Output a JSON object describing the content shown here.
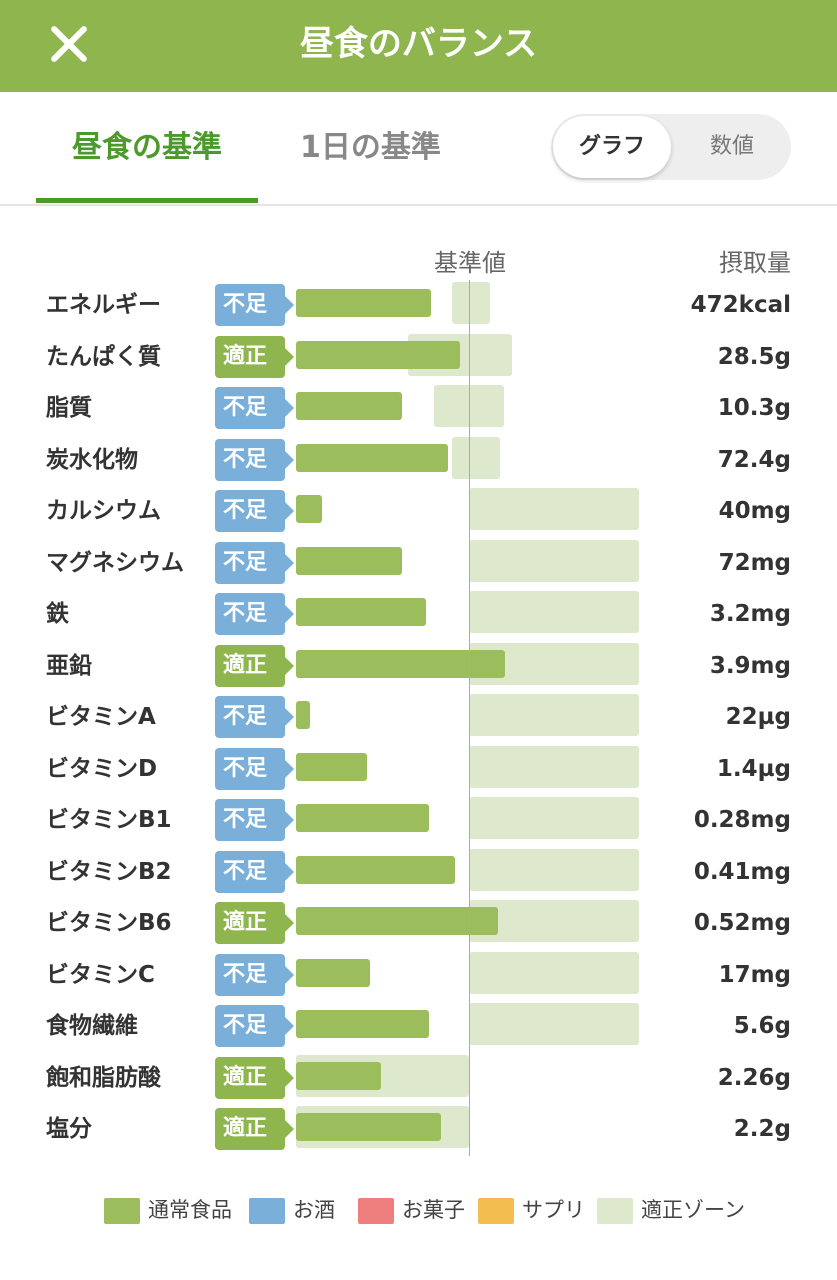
{
  "header": {
    "title": "昼食のバランス",
    "close_icon": "close-icon"
  },
  "tabs": [
    {
      "label": "昼食の基準",
      "active": true
    },
    {
      "label": "1日の基準",
      "active": false
    }
  ],
  "view_toggle": {
    "options": [
      "グラフ",
      "数値"
    ],
    "selected": "グラフ"
  },
  "columns": {
    "reference": "基準値",
    "intake": "摂取量"
  },
  "colors": {
    "header_bg": "#8fb54e",
    "low_badge": "#7aafd9",
    "ok_badge": "#8fb54e",
    "bar_food": "#9bbd5c",
    "zone": "#dde8cd",
    "alcohol": "#7aafd9",
    "sweets": "#ef7f7f",
    "supplement": "#f3bd4f"
  },
  "nutrients": [
    {
      "name": "エネルギー",
      "status": "不足",
      "status_type": "low",
      "intake": "472kcal",
      "ratio": 0.78,
      "zone": [
        0.9,
        1.12
      ]
    },
    {
      "name": "たんぱく質",
      "status": "適正",
      "status_type": "ok",
      "intake": "28.5g",
      "ratio": 0.95,
      "zone": [
        0.65,
        1.25
      ]
    },
    {
      "name": "脂質",
      "status": "不足",
      "status_type": "low",
      "intake": "10.3g",
      "ratio": 0.61,
      "zone": [
        0.8,
        1.2
      ]
    },
    {
      "name": "炭水化物",
      "status": "不足",
      "status_type": "low",
      "intake": "72.4g",
      "ratio": 0.88,
      "zone": [
        0.9,
        1.18
      ]
    },
    {
      "name": "カルシウム",
      "status": "不足",
      "status_type": "low",
      "intake": "40mg",
      "ratio": 0.15,
      "zone": [
        1.0,
        1.98
      ]
    },
    {
      "name": "マグネシウム",
      "status": "不足",
      "status_type": "low",
      "intake": "72mg",
      "ratio": 0.61,
      "zone": [
        1.0,
        1.98
      ]
    },
    {
      "name": "鉄",
      "status": "不足",
      "status_type": "low",
      "intake": "3.2mg",
      "ratio": 0.75,
      "zone": [
        1.0,
        1.98
      ]
    },
    {
      "name": "亜鉛",
      "status": "適正",
      "status_type": "ok",
      "intake": "3.9mg",
      "ratio": 1.21,
      "zone": [
        1.0,
        1.98
      ]
    },
    {
      "name": "ビタミンA",
      "status": "不足",
      "status_type": "low",
      "intake": "22µg",
      "ratio": 0.08,
      "zone": [
        1.0,
        1.98
      ]
    },
    {
      "name": "ビタミンD",
      "status": "不足",
      "status_type": "low",
      "intake": "1.4µg",
      "ratio": 0.41,
      "zone": [
        1.0,
        1.98
      ]
    },
    {
      "name": "ビタミンB1",
      "status": "不足",
      "status_type": "low",
      "intake": "0.28mg",
      "ratio": 0.77,
      "zone": [
        1.0,
        1.98
      ]
    },
    {
      "name": "ビタミンB2",
      "status": "不足",
      "status_type": "low",
      "intake": "0.41mg",
      "ratio": 0.92,
      "zone": [
        1.0,
        1.98
      ]
    },
    {
      "name": "ビタミンB6",
      "status": "適正",
      "status_type": "ok",
      "intake": "0.52mg",
      "ratio": 1.17,
      "zone": [
        1.0,
        1.98
      ]
    },
    {
      "name": "ビタミンC",
      "status": "不足",
      "status_type": "low",
      "intake": "17mg",
      "ratio": 0.43,
      "zone": [
        1.0,
        1.98
      ]
    },
    {
      "name": "食物繊維",
      "status": "不足",
      "status_type": "low",
      "intake": "5.6g",
      "ratio": 0.77,
      "zone": [
        1.0,
        1.98
      ]
    },
    {
      "name": "飽和脂肪酸",
      "status": "適正",
      "status_type": "ok",
      "intake": "2.26g",
      "ratio": 0.49,
      "zone": [
        0.0,
        1.0
      ]
    },
    {
      "name": "塩分",
      "status": "適正",
      "status_type": "ok",
      "intake": "2.2g",
      "ratio": 0.84,
      "zone": [
        0.0,
        1.0
      ]
    }
  ],
  "legend": [
    {
      "label": "通常食品",
      "color": "#9bbd5c"
    },
    {
      "label": "お酒",
      "color": "#7aafd9"
    },
    {
      "label": "お菓子",
      "color": "#ef7f7f"
    },
    {
      "label": "サプリ",
      "color": "#f3bd4f"
    },
    {
      "label": "適正ゾーン",
      "color": "#dde8cd"
    }
  ]
}
